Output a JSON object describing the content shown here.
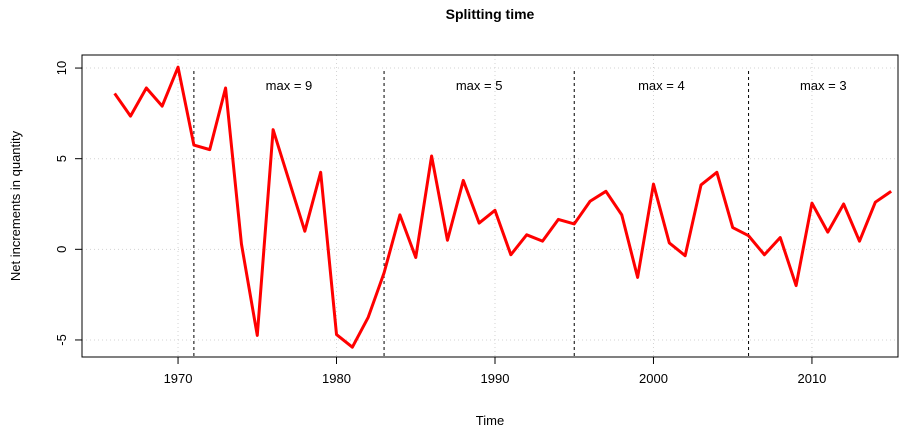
{
  "chart_data": {
    "type": "line",
    "title": "Splitting time",
    "xlabel": "Time",
    "ylabel": "Net increments in quantity",
    "x": [
      1966,
      1967,
      1968,
      1969,
      1970,
      1971,
      1972,
      1973,
      1974,
      1975,
      1976,
      1977,
      1978,
      1979,
      1980,
      1981,
      1982,
      1983,
      1984,
      1985,
      1986,
      1987,
      1988,
      1989,
      1990,
      1991,
      1992,
      1993,
      1994,
      1995,
      1996,
      1997,
      1998,
      1999,
      2000,
      2001,
      2002,
      2003,
      2004,
      2005,
      2006,
      2007,
      2008,
      2009,
      2010,
      2011,
      2012,
      2013,
      2014,
      2015
    ],
    "series": [
      {
        "name": "Net increments in quantity",
        "color": "#ff0000",
        "values": [
          8.6,
          7.35,
          8.9,
          7.9,
          10.05,
          5.75,
          5.5,
          8.9,
          0.3,
          -4.75,
          6.6,
          3.8,
          1.0,
          4.25,
          -4.7,
          -5.4,
          -3.75,
          -1.3,
          1.9,
          -0.45,
          5.15,
          0.5,
          3.8,
          1.45,
          2.15,
          -0.3,
          0.8,
          0.45,
          1.65,
          1.4,
          2.65,
          3.2,
          1.9,
          -1.55,
          3.6,
          0.35,
          -0.35,
          3.55,
          4.25,
          1.2,
          0.75,
          -0.3,
          0.65,
          -2.0,
          2.55,
          0.95,
          2.5,
          0.45,
          2.6,
          3.2
        ]
      }
    ],
    "breaks": [
      1971,
      1983,
      1995,
      2006
    ],
    "annotations": [
      "max = 9",
      "max = 5",
      "max = 4",
      "max = 3"
    ],
    "xlim": [
      1963.94,
      2015.43
    ],
    "xticks": [
      1970,
      1980,
      1990,
      2000,
      2010
    ],
    "ylim": [
      -5.94,
      10.72
    ],
    "yticks": [
      -5,
      0,
      5,
      10
    ],
    "grid": true
  }
}
